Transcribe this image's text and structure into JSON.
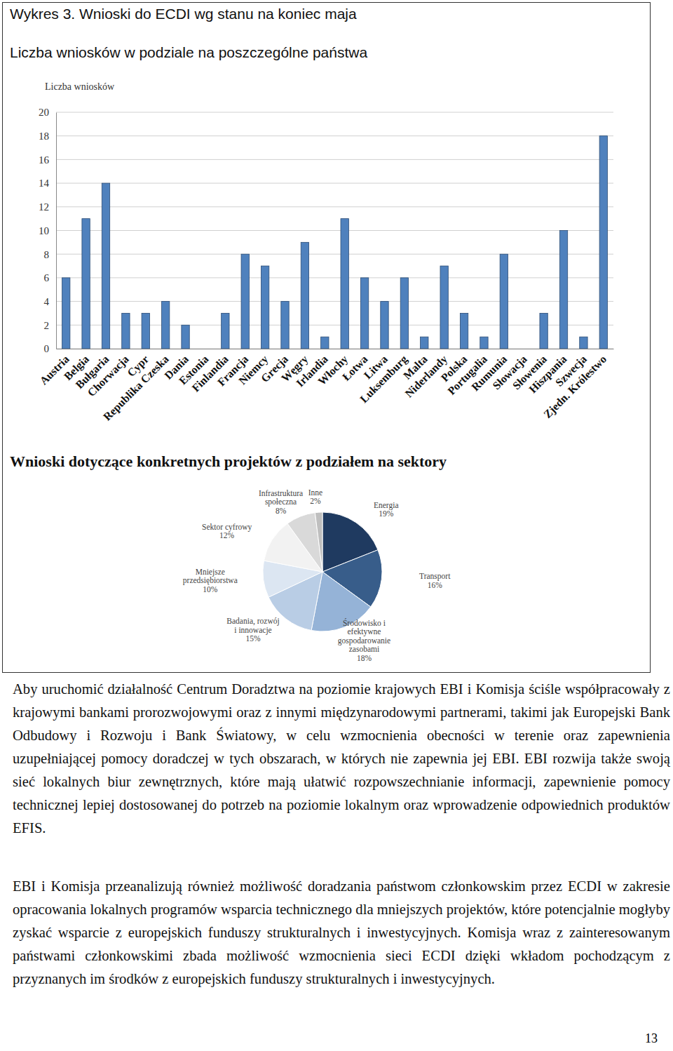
{
  "page": {
    "figure_title": "Wykres 3. Wnioski do ECDI wg stanu na koniec maja",
    "paragraphs": [
      "Aby uruchomić działalność Centrum Doradztwa na poziomie krajowych EBI i Komisja ściśle współpracowały z krajowymi bankami prorozwojowymi oraz z innymi międzynarodowymi partnerami, takimi jak Europejski Bank Odbudowy i Rozwoju i Bank Światowy, w celu wzmocnienia obecności w terenie oraz zapewnienia uzupełniającej pomocy doradczej w tych obszarach, w których nie zapewnia jej EBI. EBI rozwija także swoją sieć lokalnych biur zewnętrznych, które mają ułatwić rozpowszechnianie informacji, zapewnienie pomocy technicznej lepiej dostosowanej do potrzeb na poziomie lokalnym oraz wprowadzenie odpowiednich produktów EFIS.",
      "EBI i Komisja przeanalizują również możliwość doradzania państwom członkowskim przez ECDI w zakresie opracowania lokalnych programów wsparcia technicznego dla mniejszych projektów, które potencjalnie mogłyby zyskać wsparcie z europejskich funduszy strukturalnych i inwestycyjnych. Komisja wraz z zainteresowanym państwami członkowskimi zbada możliwość wzmocnienia sieci ECDI dzięki wkładom pochodzącym z przyznanych im środków z europejskich funduszy strukturalnych i inwestycyjnych."
    ],
    "page_number": 13
  },
  "chart_data": [
    {
      "type": "bar",
      "title": "Liczba wniosków w podziale na poszczególne państwa",
      "y_label": "Liczba wniosków",
      "categories": [
        "Austria",
        "Belgia",
        "Bułgaria",
        "Chorwacja",
        "Cypr",
        "Republika Czeska",
        "Dania",
        "Estonia",
        "Finlandia",
        "Francja",
        "Niemcy",
        "Grecja",
        "Węgry",
        "Irlandia",
        "Włochy",
        "Łotwa",
        "Litwa",
        "Luksemburg",
        "Malta",
        "Niderlandy",
        "Polska",
        "Portugalia",
        "Rumunia",
        "Słowacja",
        "Słowenia",
        "Hiszpania",
        "Szwecja",
        "Zjedn. Królestwo"
      ],
      "values": [
        6,
        11,
        14,
        3,
        3,
        4,
        2,
        0,
        3,
        8,
        7,
        4,
        9,
        1,
        11,
        6,
        4,
        6,
        1,
        7,
        3,
        1,
        8,
        0,
        3,
        10,
        1,
        18
      ],
      "color": "#4f81bd",
      "ylim": [
        0,
        20
      ],
      "yticks": [
        0,
        2,
        4,
        6,
        8,
        10,
        12,
        14,
        16,
        18,
        20
      ],
      "grid": true
    },
    {
      "type": "pie",
      "title": "Wnioski dotyczące konkretnych projektów z podziałem na sektory",
      "categories": [
        "Energia",
        "Transport",
        "Środowisko i efektywne gospodarowanie zasobami",
        "Badania, rozwój i innowacje",
        "Mniejsze przedsiębiorstwa",
        "Sektor cyfrowy",
        "Infrastruktura społeczna",
        "Inne"
      ],
      "values": [
        19,
        16,
        18,
        15,
        10,
        12,
        8,
        2
      ],
      "value_labels": [
        "19%",
        "16%",
        "18%",
        "15%",
        "10%",
        "12%",
        "8%",
        "2%"
      ],
      "colors": [
        "#1f3a60",
        "#385d8a",
        "#95b3d7",
        "#b9cde5",
        "#dce6f2",
        "#f2f2f2",
        "#d9d9d9",
        "#bfbfbf"
      ],
      "data_labels": true
    }
  ]
}
